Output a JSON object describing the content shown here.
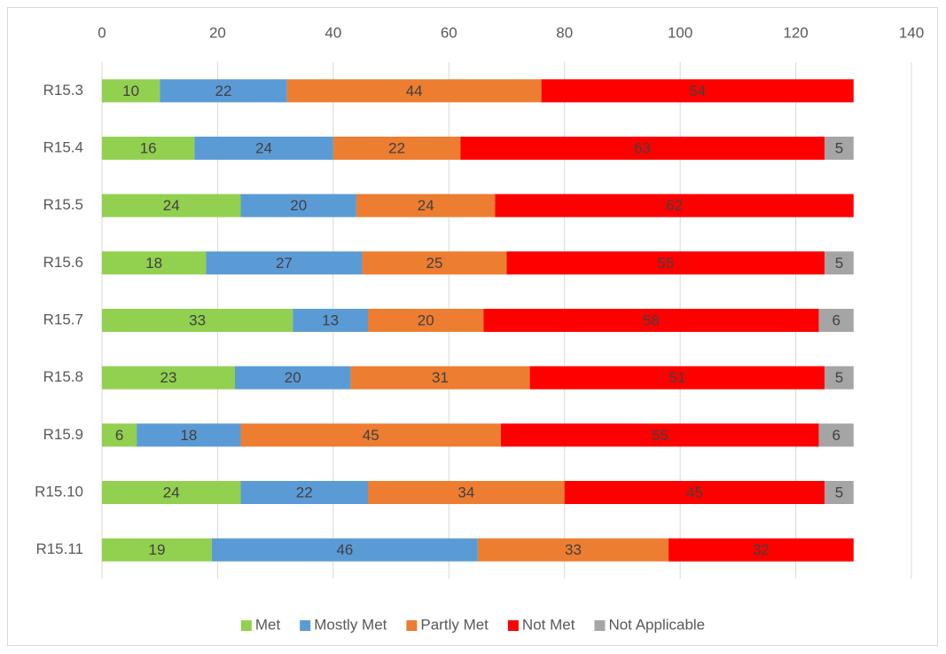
{
  "chart_data": {
    "type": "bar",
    "orientation": "horizontal",
    "stacked": true,
    "categories": [
      "R15.3",
      "R15.4",
      "R15.5",
      "R15.6",
      "R15.7",
      "R15.8",
      "R15.9",
      "R15.10",
      "R15.11"
    ],
    "series": [
      {
        "name": "Met",
        "color": "#92d050",
        "values": [
          10,
          16,
          24,
          18,
          33,
          23,
          6,
          24,
          19
        ]
      },
      {
        "name": "Mostly Met",
        "color": "#5b9bd5",
        "values": [
          22,
          24,
          20,
          27,
          13,
          20,
          18,
          22,
          46
        ]
      },
      {
        "name": "Partly Met",
        "color": "#ed7d31",
        "values": [
          44,
          22,
          24,
          25,
          20,
          31,
          45,
          34,
          33
        ]
      },
      {
        "name": "Not Met",
        "color": "#ff0000",
        "values": [
          54,
          63,
          62,
          55,
          58,
          51,
          55,
          45,
          32
        ]
      },
      {
        "name": "Not Applicable",
        "color": "#a5a5a5",
        "values": [
          null,
          5,
          null,
          5,
          6,
          5,
          6,
          5,
          null
        ]
      }
    ],
    "xlim": [
      0,
      140
    ],
    "xticks": [
      0,
      20,
      40,
      60,
      80,
      100,
      120,
      140
    ],
    "grid": true,
    "legend": "bottom"
  }
}
